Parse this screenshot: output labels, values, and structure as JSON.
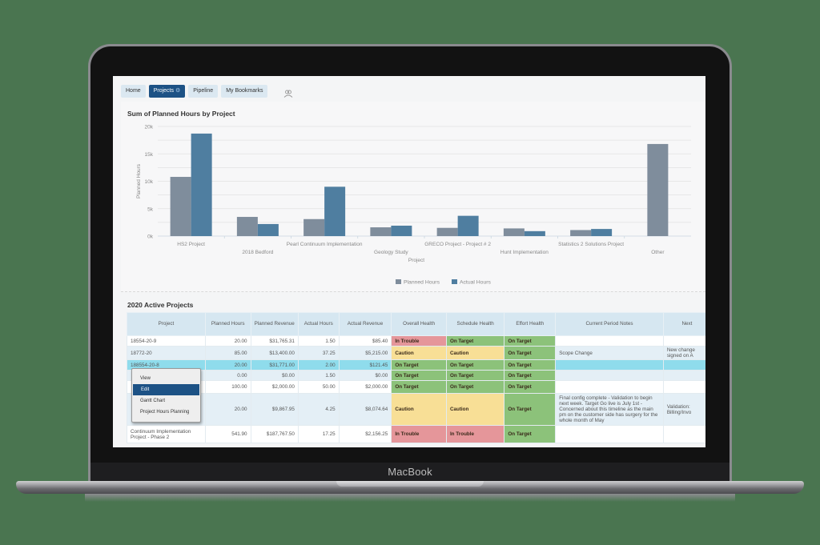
{
  "device": {
    "brand_label": "MacBook"
  },
  "nav": {
    "tabs": [
      {
        "label": "Home",
        "active": false
      },
      {
        "label": "Projects",
        "active": true,
        "icon": "gear-icon"
      },
      {
        "label": "Pipeline",
        "active": false
      },
      {
        "label": "My Bookmarks",
        "active": false
      }
    ],
    "extra_icon": "people-icon"
  },
  "chart_panel": {
    "title": "Sum of Planned Hours by Project"
  },
  "chart_data": {
    "type": "bar",
    "title": "Sum of Planned Hours by Project",
    "xlabel": "Project",
    "ylabel": "Planned Hours",
    "ylim": [
      0,
      20000
    ],
    "yticks": [
      "0k",
      "5k",
      "10k",
      "15k",
      "20k"
    ],
    "grid": true,
    "legend_position": "bottom",
    "categories": [
      "HS2 Project",
      "2018 Bedford",
      "Pearl Continuum Implementation",
      "Geology Study",
      "GRECO Project - Project # 2",
      "Hunt Implementation",
      "Statistics 2 Solutions Project",
      "Other"
    ],
    "series": [
      {
        "name": "Planned Hours",
        "color": "#7f8d9c",
        "values": [
          10800,
          3500,
          3100,
          1600,
          1500,
          1400,
          1100,
          16800
        ]
      },
      {
        "name": "Actual Hours",
        "color": "#4f7ea0",
        "values": [
          18700,
          2200,
          9000,
          1900,
          3700,
          900,
          1300,
          null
        ]
      }
    ]
  },
  "table_panel": {
    "title": "2020 Active Projects",
    "columns": [
      "Project",
      "Planned Hours",
      "Planned Revenue",
      "Actual Hours",
      "Actual Revenue",
      "Overall Health",
      "Schedule Health",
      "Effort Health",
      "Current Period Notes",
      "Next"
    ],
    "rows": [
      {
        "project": "18554-20-9",
        "planned_hours": "20.00",
        "planned_revenue": "$31,765.31",
        "actual_hours": "1.50",
        "actual_revenue": "$85.40",
        "overall": "In Trouble",
        "schedule": "On Target",
        "effort": "On Target",
        "notes": "",
        "next": ""
      },
      {
        "project": "18772-20",
        "planned_hours": "85.00",
        "planned_revenue": "$13,400.00",
        "actual_hours": "37.25",
        "actual_revenue": "$5,215.00",
        "overall": "Caution",
        "schedule": "Caution",
        "effort": "On Target",
        "notes": "Scope Change",
        "next": "New change signed on A"
      },
      {
        "project": "188554-20-8",
        "planned_hours": "20.00",
        "planned_revenue": "$31,771.00",
        "actual_hours": "2.00",
        "actual_revenue": "$121.45",
        "overall": "On Target",
        "schedule": "On Target",
        "effort": "On Target",
        "notes": "",
        "next": "",
        "selected": true
      },
      {
        "project": "",
        "planned_hours": "0.00",
        "planned_revenue": "$0.00",
        "actual_hours": "1.50",
        "actual_revenue": "$0.00",
        "overall": "On Target",
        "schedule": "On Target",
        "effort": "On Target",
        "notes": "",
        "next": ""
      },
      {
        "project": "",
        "planned_hours": "100.00",
        "planned_revenue": "$2,000.00",
        "actual_hours": "50.00",
        "actual_revenue": "$2,000.00",
        "overall": "On Target",
        "schedule": "On Target",
        "effort": "On Target",
        "notes": "",
        "next": ""
      },
      {
        "project": "",
        "planned_hours": "20.00",
        "planned_revenue": "$9,867.95",
        "actual_hours": "4.25",
        "actual_revenue": "$8,074.64",
        "overall": "Caution",
        "schedule": "Caution",
        "effort": "On Target",
        "notes": "Final config complete - Validation to begin next week. Target Go live is July 1st - Concerned about this timeline as the main pm on the customer side has surgery for the whole month of May",
        "next": "Validation: Billing/Invo"
      },
      {
        "project": "Continuum Implementation Project - Phase 2",
        "planned_hours": "541.90",
        "planned_revenue": "$187,767.50",
        "actual_hours": "17.25",
        "actual_revenue": "$2,156.25",
        "overall": "In Trouble",
        "schedule": "In Trouble",
        "effort": "On Target",
        "notes": "",
        "next": ""
      }
    ]
  },
  "context_menu": {
    "items": [
      {
        "label": "View",
        "highlighted": false
      },
      {
        "label": "Edit",
        "highlighted": true
      },
      {
        "label": "Gantt Chart",
        "highlighted": false
      },
      {
        "label": "Project Hours Planning",
        "highlighted": false
      }
    ]
  },
  "colors": {
    "background": "#4a7550",
    "active_tab": "#1d5285",
    "planned_bar": "#7f8d9c",
    "actual_bar": "#4f7ea0",
    "in_trouble": "#e5969a",
    "caution": "#f8df96",
    "on_target": "#8cc27a",
    "selected_row": "#8fdcec"
  }
}
